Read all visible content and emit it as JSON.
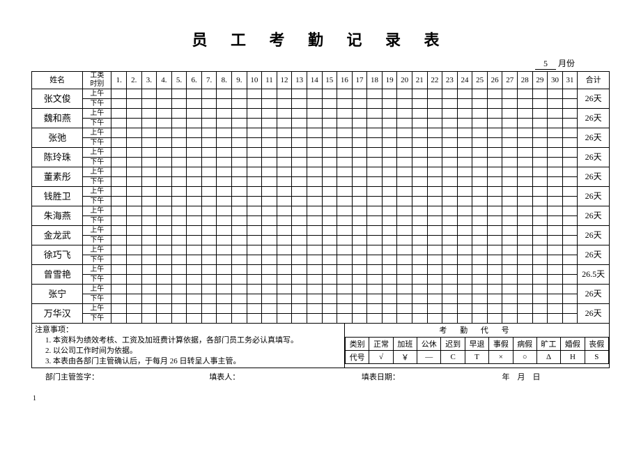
{
  "title": "员 工 考 勤 记 录 表",
  "month_value": "5",
  "month_suffix": "月份",
  "header": {
    "name": "姓名",
    "period": "工类\n时别",
    "total": "合计"
  },
  "periods": {
    "am": "上午",
    "pm": "下午"
  },
  "days": [
    "1.",
    "2.",
    "3.",
    "4.",
    "5.",
    "6.",
    "7.",
    "8.",
    "9.",
    "10",
    "11",
    "12",
    "13",
    "14",
    "15",
    "16",
    "17",
    "18",
    "19",
    "20",
    "21",
    "22",
    "23",
    "24",
    "25",
    "26",
    "27",
    "28",
    "29",
    "30",
    "31"
  ],
  "employees": [
    {
      "name": "张文俊",
      "total": "26天"
    },
    {
      "name": "魏和燕",
      "total": "26天"
    },
    {
      "name": "张弛",
      "total": "26天"
    },
    {
      "name": "陈玲珠",
      "total": "26天"
    },
    {
      "name": "董素彤",
      "total": "26天"
    },
    {
      "name": "钱胜卫",
      "total": "26天"
    },
    {
      "name": "朱海燕",
      "total": "26天"
    },
    {
      "name": "金龙武",
      "total": "26天"
    },
    {
      "name": "徐巧飞",
      "total": "26天"
    },
    {
      "name": "曾雪艳",
      "total": "26.5天"
    },
    {
      "name": "张宁",
      "total": "26天"
    },
    {
      "name": "万华汉",
      "total": "26天"
    }
  ],
  "notes": {
    "header": "注意事项：",
    "items": [
      "本资料为绩效考核、工资及加班费计算依据，各部门员工务必认真填写。",
      "以公司工作时间为依据。",
      "本表由各部门主管确认后，于每月 26 日转呈人事主管。"
    ]
  },
  "legend": {
    "title": "考 勤 代 号",
    "row_label_category": "类别",
    "row_label_code": "代号",
    "categories": [
      "正常",
      "加班",
      "公休",
      "迟到",
      "早退",
      "事假",
      "病假",
      "旷工",
      "婚假",
      "丧假"
    ],
    "codes": [
      "√",
      "￥",
      "—",
      "C",
      "T",
      "×",
      "○",
      "Δ",
      "H",
      "S"
    ]
  },
  "footer": {
    "supervisor": "部门主管签字：",
    "preparer": "填表人：",
    "date_label": "填表日期：",
    "date_fmt": "年　月　日"
  },
  "page_number": "1"
}
